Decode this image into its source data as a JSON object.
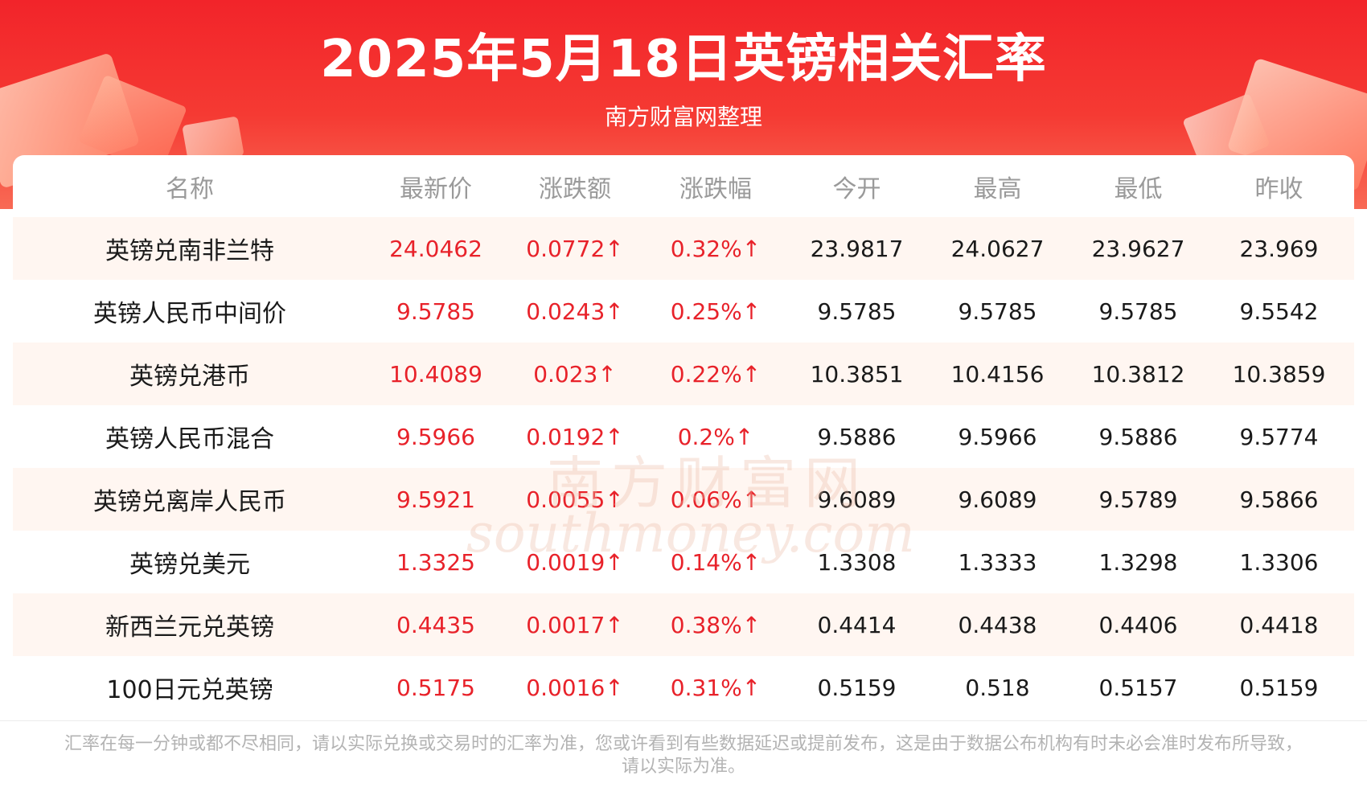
{
  "header": {
    "title": "2025年5月18日英镑相关汇率",
    "subtitle": "南方财富网整理"
  },
  "table": {
    "columns": [
      "名称",
      "最新价",
      "涨跌额",
      "涨跌幅",
      "今开",
      "最高",
      "最低",
      "昨收"
    ],
    "rows": [
      [
        "英镑兑南非兰特",
        "24.0462",
        "0.0772↑",
        "0.32%↑",
        "23.9817",
        "24.0627",
        "23.9627",
        "23.969"
      ],
      [
        "英镑人民币中间价",
        "9.5785",
        "0.0243↑",
        "0.25%↑",
        "9.5785",
        "9.5785",
        "9.5785",
        "9.5542"
      ],
      [
        "英镑兑港币",
        "10.4089",
        "0.023↑",
        "0.22%↑",
        "10.3851",
        "10.4156",
        "10.3812",
        "10.3859"
      ],
      [
        "英镑人民币混合",
        "9.5966",
        "0.0192↑",
        "0.2%↑",
        "9.5886",
        "9.5966",
        "9.5886",
        "9.5774"
      ],
      [
        "英镑兑离岸人民币",
        "9.5921",
        "0.0055↑",
        "0.06%↑",
        "9.6089",
        "9.6089",
        "9.5789",
        "9.5866"
      ],
      [
        "英镑兑美元",
        "1.3325",
        "0.0019↑",
        "0.14%↑",
        "1.3308",
        "1.3333",
        "1.3298",
        "1.3306"
      ],
      [
        "新西兰元兑英镑",
        "0.4435",
        "0.0017↑",
        "0.38%↑",
        "0.4414",
        "0.4438",
        "0.4406",
        "0.4418"
      ],
      [
        "100日元兑英镑",
        "0.5175",
        "0.0016↑",
        "0.31%↑",
        "0.5159",
        "0.518",
        "0.5157",
        "0.5159"
      ]
    ]
  },
  "watermark": {
    "cn": "南方财富网",
    "en": "southmoney.com"
  },
  "footer": {
    "line1": "汇率在每一分钟或都不尽相同，请以实际兑换或交易时的汇率为准，您或许看到有些数据延迟或提前发布，这是由于数据公布机构有时未必会准时发布所导致，",
    "line2": "请以实际为准。"
  },
  "colors": {
    "brand_red": "#f2242a",
    "up_red": "#e8222a",
    "row_shade": "#fff6f1"
  }
}
